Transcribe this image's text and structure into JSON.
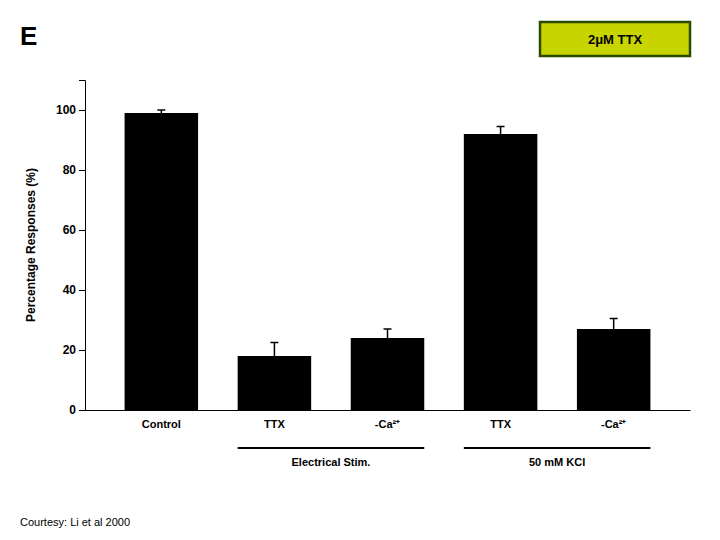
{
  "chart_data": {
    "type": "bar",
    "panel_label": "E",
    "categories": [
      "Control",
      "TTX",
      "-Ca²⁺",
      "TTX",
      "-Ca²⁺"
    ],
    "values": [
      99,
      18,
      24,
      92,
      27
    ],
    "errors": [
      1.0,
      4.5,
      3.0,
      2.5,
      3.5
    ],
    "color": "#000000",
    "ylabel": "Percentage Responses (%)",
    "ylim": [
      0,
      110
    ],
    "yticks": [
      0,
      20,
      40,
      60,
      80,
      100
    ],
    "grid": false,
    "groups": [
      {
        "label": "Electrical Stim.",
        "categories": [
          1,
          2
        ]
      },
      {
        "label": "50 mM KCl",
        "categories": [
          3,
          4
        ]
      }
    ],
    "label_box": {
      "text": "2μM TTX",
      "color": "#c8d400",
      "border_color": "#2a4a00",
      "text_color": "#000000"
    },
    "caption": "Courtesy: Li et al 2000"
  }
}
